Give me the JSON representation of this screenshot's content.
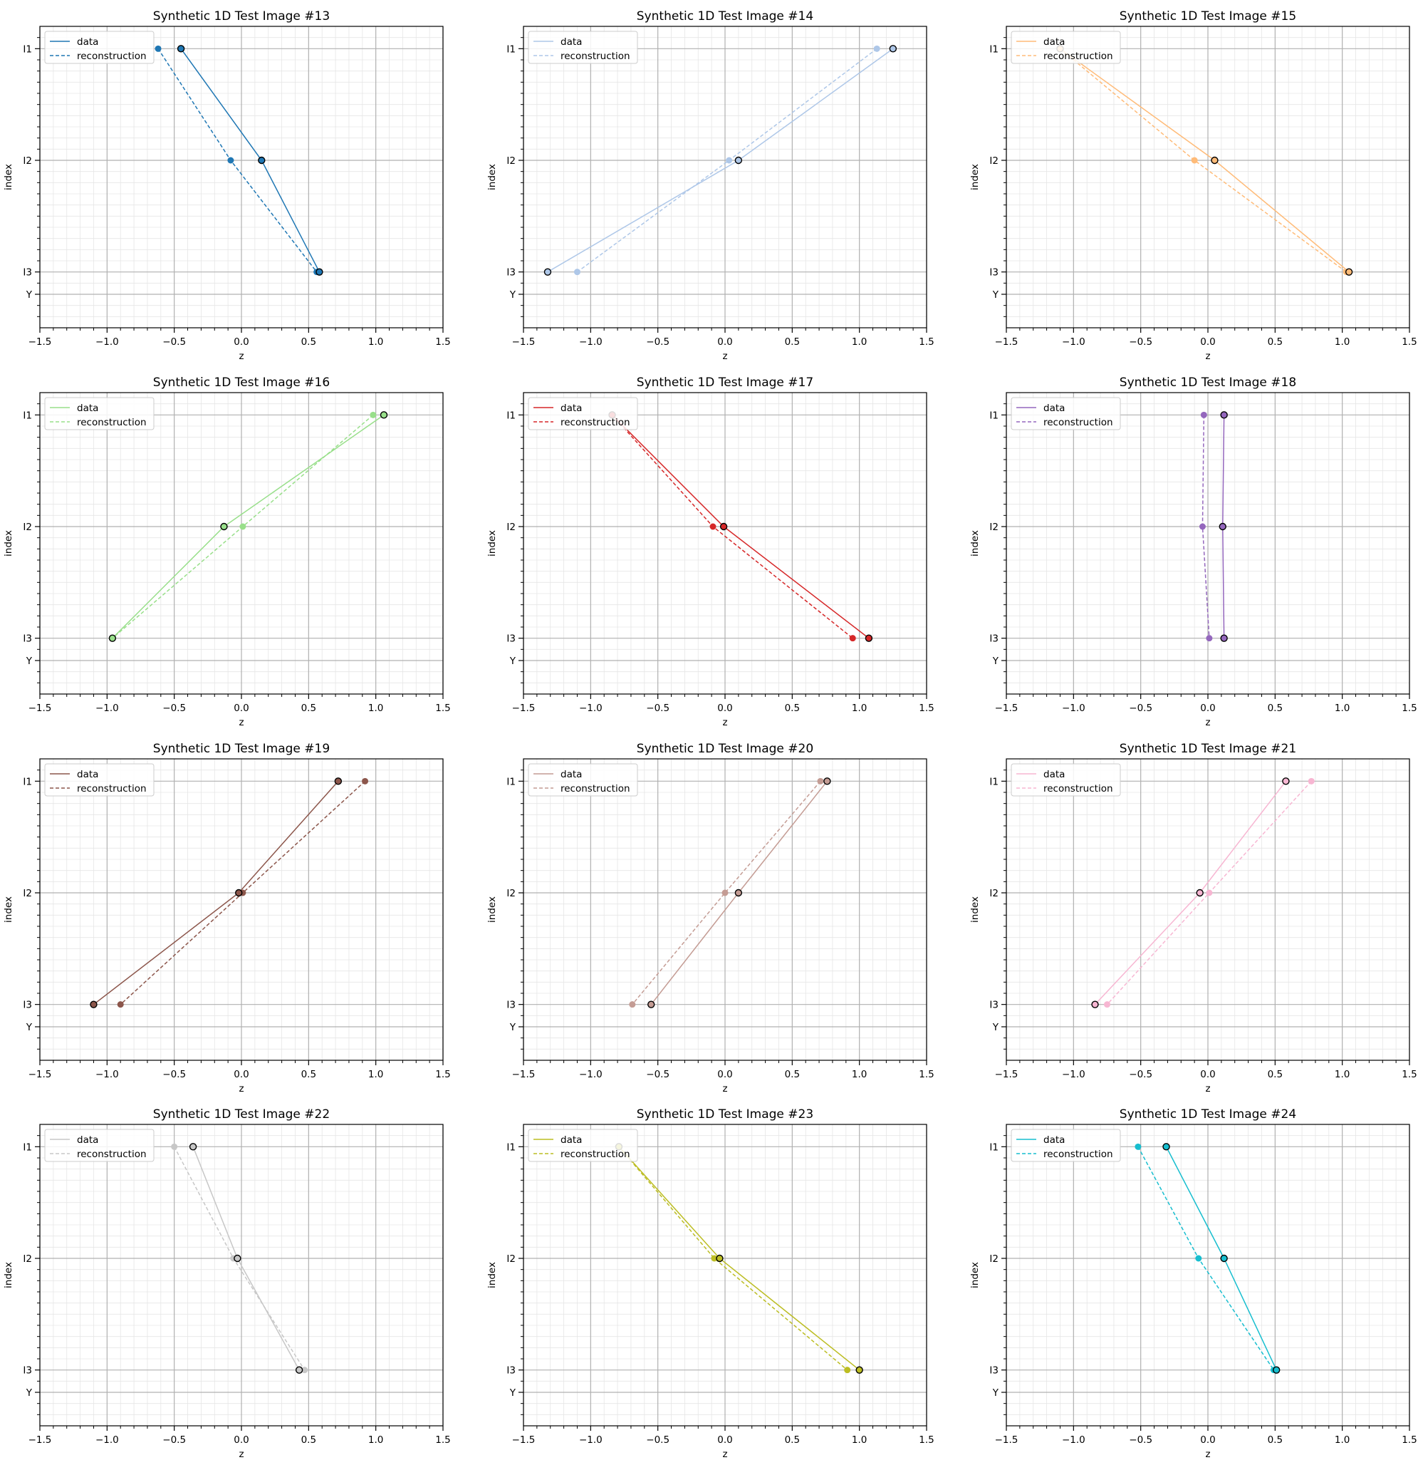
{
  "figure": {
    "xlim": [
      -1.5,
      1.5
    ],
    "x_ticks": [
      -1.5,
      -1.0,
      -0.5,
      0.0,
      0.5,
      1.0,
      1.5
    ],
    "x_tick_labels": [
      "−1.5",
      "−1.0",
      "−0.5",
      "0.0",
      "0.5",
      "1.0",
      "1.5"
    ],
    "y_ticks": [
      "I1",
      "I2",
      "I3",
      "Y"
    ],
    "legend_labels": [
      "data",
      "reconstruction"
    ]
  },
  "chart_data": [
    {
      "type": "line",
      "title": "Synthetic 1D Test Image #13",
      "xlabel": "z",
      "ylabel": "index",
      "color": "#1f77b4",
      "legend": "upper left",
      "grid": true,
      "series": [
        {
          "name": "data",
          "x": [
            -0.45,
            0.15,
            0.58
          ],
          "y": [
            "I1",
            "I2",
            "I3"
          ],
          "style": "solid"
        },
        {
          "name": "reconstruction",
          "x": [
            -0.62,
            -0.08,
            0.56
          ],
          "y": [
            "I1",
            "I2",
            "I3"
          ],
          "style": "dashed"
        }
      ]
    },
    {
      "type": "line",
      "title": "Synthetic 1D Test Image #14",
      "xlabel": "z",
      "ylabel": "index",
      "color": "#aec7e8",
      "legend": "upper left",
      "grid": true,
      "series": [
        {
          "name": "data",
          "x": [
            1.25,
            0.1,
            -1.32
          ],
          "y": [
            "I1",
            "I2",
            "I3"
          ],
          "style": "solid"
        },
        {
          "name": "reconstruction",
          "x": [
            1.13,
            0.03,
            -1.1
          ],
          "y": [
            "I1",
            "I2",
            "I3"
          ],
          "style": "dashed"
        }
      ]
    },
    {
      "type": "line",
      "title": "Synthetic 1D Test Image #15",
      "xlabel": "z",
      "ylabel": "index",
      "color": "#ffbb78",
      "legend": "upper left",
      "grid": true,
      "series": [
        {
          "name": "data",
          "x": [
            -1.1,
            0.05,
            1.05
          ],
          "y": [
            "I1",
            "I2",
            "I3"
          ],
          "style": "solid"
        },
        {
          "name": "reconstruction",
          "x": [
            -1.1,
            -0.1,
            1.03
          ],
          "y": [
            "I1",
            "I2",
            "I3"
          ],
          "style": "dashed"
        }
      ]
    },
    {
      "type": "line",
      "title": "Synthetic 1D Test Image #16",
      "xlabel": "z",
      "ylabel": "index",
      "color": "#98df8a",
      "legend": "upper left",
      "grid": true,
      "series": [
        {
          "name": "data",
          "x": [
            1.06,
            -0.13,
            -0.96
          ],
          "y": [
            "I1",
            "I2",
            "I3"
          ],
          "style": "solid"
        },
        {
          "name": "reconstruction",
          "x": [
            0.98,
            0.01,
            -0.96
          ],
          "y": [
            "I1",
            "I2",
            "I3"
          ],
          "style": "dashed"
        }
      ]
    },
    {
      "type": "line",
      "title": "Synthetic 1D Test Image #17",
      "xlabel": "z",
      "ylabel": "index",
      "color": "#d62728",
      "legend": "upper left",
      "grid": true,
      "series": [
        {
          "name": "data",
          "x": [
            -0.84,
            -0.01,
            1.07
          ],
          "y": [
            "I1",
            "I2",
            "I3"
          ],
          "style": "solid"
        },
        {
          "name": "reconstruction",
          "x": [
            -0.84,
            -0.09,
            0.95
          ],
          "y": [
            "I1",
            "I2",
            "I3"
          ],
          "style": "dashed"
        }
      ]
    },
    {
      "type": "line",
      "title": "Synthetic 1D Test Image #18",
      "xlabel": "z",
      "ylabel": "index",
      "color": "#9467bd",
      "legend": "upper left",
      "grid": true,
      "series": [
        {
          "name": "data",
          "x": [
            0.12,
            0.11,
            0.12
          ],
          "y": [
            "I1",
            "I2",
            "I3"
          ],
          "style": "solid"
        },
        {
          "name": "reconstruction",
          "x": [
            -0.03,
            -0.04,
            0.01
          ],
          "y": [
            "I1",
            "I2",
            "I3"
          ],
          "style": "dashed"
        }
      ]
    },
    {
      "type": "line",
      "title": "Synthetic 1D Test Image #19",
      "xlabel": "z",
      "ylabel": "index",
      "color": "#8c564b",
      "legend": "upper left",
      "grid": true,
      "series": [
        {
          "name": "data",
          "x": [
            0.72,
            -0.02,
            -1.1
          ],
          "y": [
            "I1",
            "I2",
            "I3"
          ],
          "style": "solid"
        },
        {
          "name": "reconstruction",
          "x": [
            0.92,
            0.01,
            -0.9
          ],
          "y": [
            "I1",
            "I2",
            "I3"
          ],
          "style": "dashed"
        }
      ]
    },
    {
      "type": "line",
      "title": "Synthetic 1D Test Image #20",
      "xlabel": "z",
      "ylabel": "index",
      "color": "#c49c94",
      "legend": "upper left",
      "grid": true,
      "series": [
        {
          "name": "data",
          "x": [
            0.76,
            0.1,
            -0.55
          ],
          "y": [
            "I1",
            "I2",
            "I3"
          ],
          "style": "solid"
        },
        {
          "name": "reconstruction",
          "x": [
            0.71,
            0.0,
            -0.69
          ],
          "y": [
            "I1",
            "I2",
            "I3"
          ],
          "style": "dashed"
        }
      ]
    },
    {
      "type": "line",
      "title": "Synthetic 1D Test Image #21",
      "xlabel": "z",
      "ylabel": "index",
      "color": "#f7b6d2",
      "legend": "upper left",
      "grid": true,
      "series": [
        {
          "name": "data",
          "x": [
            0.58,
            -0.06,
            -0.84
          ],
          "y": [
            "I1",
            "I2",
            "I3"
          ],
          "style": "solid"
        },
        {
          "name": "reconstruction",
          "x": [
            0.77,
            0.01,
            -0.75
          ],
          "y": [
            "I1",
            "I2",
            "I3"
          ],
          "style": "dashed"
        }
      ]
    },
    {
      "type": "line",
      "title": "Synthetic 1D Test Image #22",
      "xlabel": "z",
      "ylabel": "index",
      "color": "#c7c7c7",
      "legend": "upper left",
      "grid": true,
      "series": [
        {
          "name": "data",
          "x": [
            -0.36,
            -0.03,
            0.43
          ],
          "y": [
            "I1",
            "I2",
            "I3"
          ],
          "style": "solid"
        },
        {
          "name": "reconstruction",
          "x": [
            -0.5,
            -0.06,
            0.47
          ],
          "y": [
            "I1",
            "I2",
            "I3"
          ],
          "style": "dashed"
        }
      ]
    },
    {
      "type": "line",
      "title": "Synthetic 1D Test Image #23",
      "xlabel": "z",
      "ylabel": "index",
      "color": "#bcbd22",
      "legend": "upper left",
      "grid": true,
      "series": [
        {
          "name": "data",
          "x": [
            -0.79,
            -0.04,
            1.0
          ],
          "y": [
            "I1",
            "I2",
            "I3"
          ],
          "style": "solid"
        },
        {
          "name": "reconstruction",
          "x": [
            -0.79,
            -0.08,
            0.91
          ],
          "y": [
            "I1",
            "I2",
            "I3"
          ],
          "style": "dashed"
        }
      ]
    },
    {
      "type": "line",
      "title": "Synthetic 1D Test Image #24",
      "xlabel": "z",
      "ylabel": "index",
      "color": "#17becf",
      "legend": "upper left",
      "grid": true,
      "series": [
        {
          "name": "data",
          "x": [
            -0.31,
            0.12,
            0.51
          ],
          "y": [
            "I1",
            "I2",
            "I3"
          ],
          "style": "solid"
        },
        {
          "name": "reconstruction",
          "x": [
            -0.52,
            -0.07,
            0.49
          ],
          "y": [
            "I1",
            "I2",
            "I3"
          ],
          "style": "dashed"
        }
      ]
    }
  ]
}
